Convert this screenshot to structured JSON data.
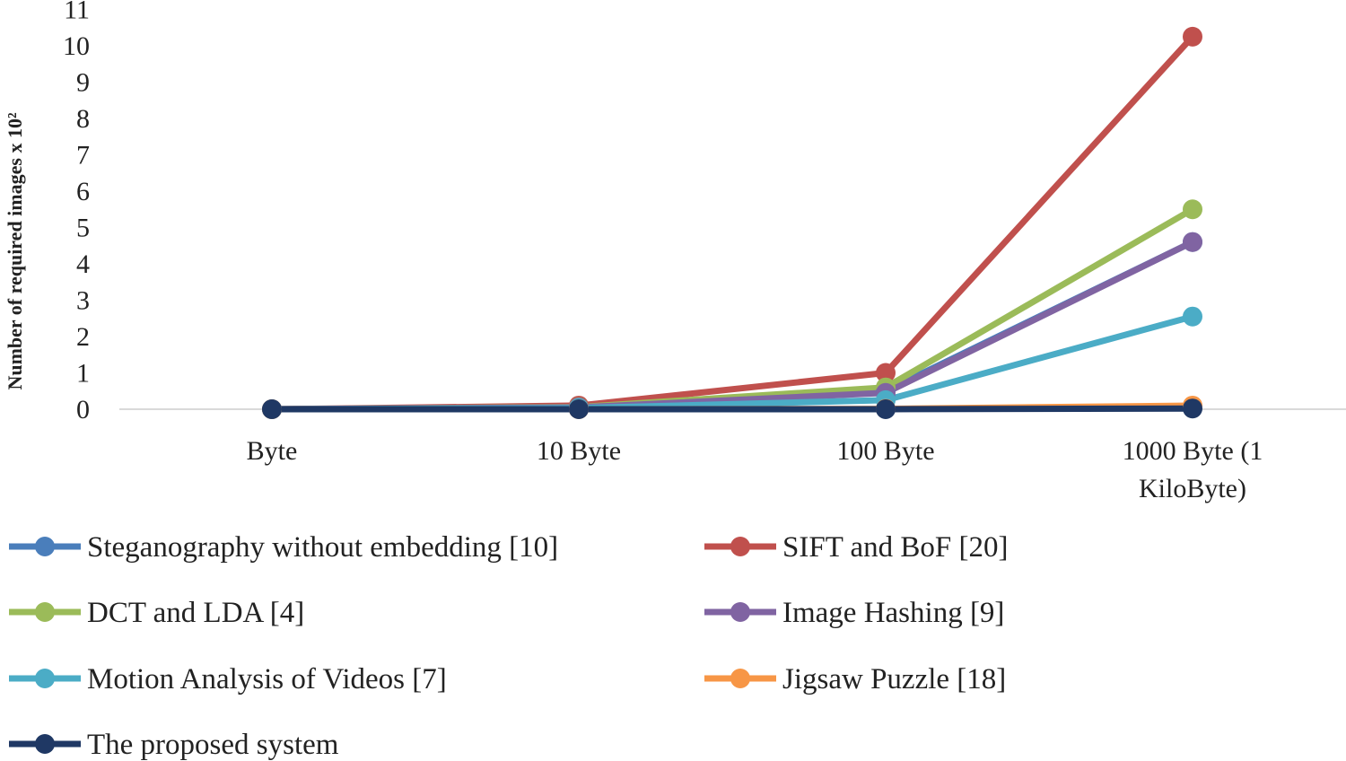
{
  "chart_data": {
    "type": "line",
    "title": "",
    "xlabel": "",
    "ylabel": "Number of required images x 10²",
    "categories": [
      "Byte",
      "10 Byte",
      "100 Byte",
      "1000 Byte (1 KiloByte)"
    ],
    "category_label_lines": [
      [
        "Byte"
      ],
      [
        "10 Byte"
      ],
      [
        "100 Byte"
      ],
      [
        "1000 Byte (1",
        "KiloByte)"
      ]
    ],
    "ylim": [
      0,
      11
    ],
    "yticks": [
      "0",
      "1",
      "2",
      "3",
      "4",
      "5",
      "6",
      "7",
      "8",
      "9",
      "10",
      "11"
    ],
    "grid": false,
    "legend_position": "bottom",
    "series": [
      {
        "name": "Steganography without embedding [10]",
        "color": "#4A7EBB",
        "values": [
          0,
          0.05,
          0.5,
          4.6
        ]
      },
      {
        "name": "SIFT and BoF [20]",
        "color": "#C0504D",
        "values": [
          0,
          0.1,
          1.0,
          10.25
        ]
      },
      {
        "name": "DCT and LDA [4]",
        "color": "#9BBB59",
        "values": [
          0,
          0.06,
          0.6,
          5.5
        ]
      },
      {
        "name": "Image Hashing [9]",
        "color": "#8064A2",
        "values": [
          0,
          0.05,
          0.45,
          4.6
        ]
      },
      {
        "name": "Motion Analysis of Videos [7]",
        "color": "#4BACC6",
        "values": [
          0,
          0.03,
          0.25,
          2.55
        ]
      },
      {
        "name": "Jigsaw Puzzle [18]",
        "color": "#F79646",
        "values": [
          0,
          0,
          0.01,
          0.1
        ]
      },
      {
        "name": "The proposed system",
        "color": "#1F3864",
        "values": [
          0,
          0,
          0,
          0.02
        ]
      }
    ]
  }
}
